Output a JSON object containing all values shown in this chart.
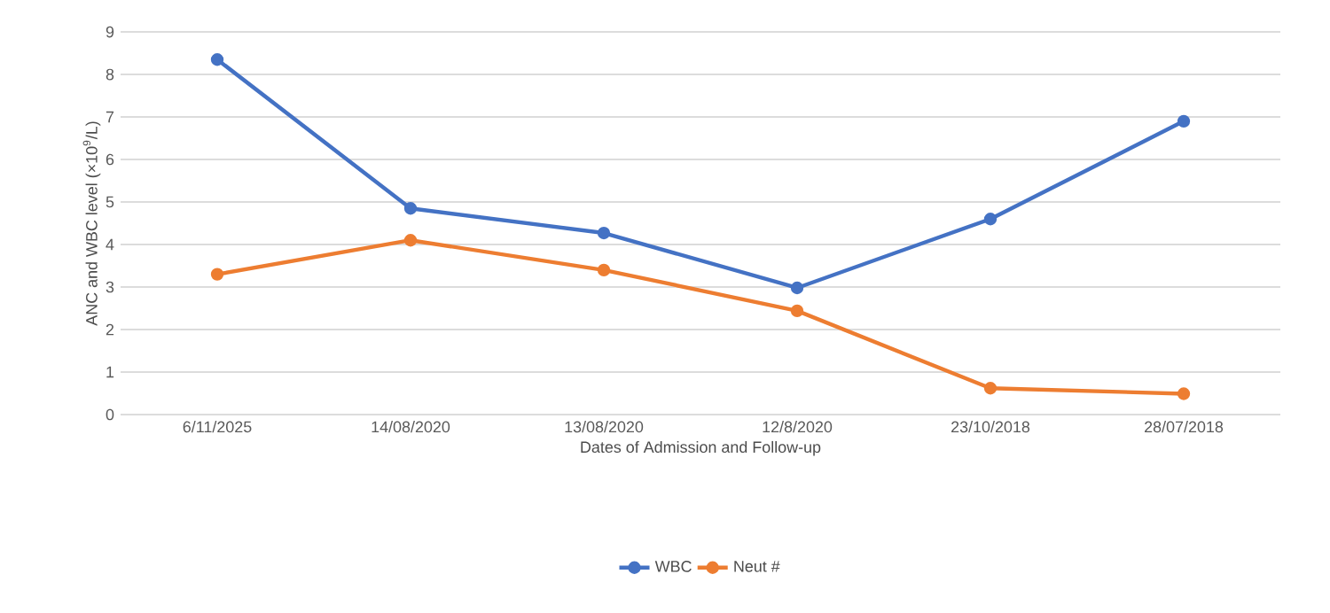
{
  "chart_data": {
    "type": "line",
    "xlabel": "Dates of Admission and Follow-up",
    "ylabel": "ANC and WBC level (×10$^{9}$/L)",
    "categories": [
      "6/11/2025",
      "14/08/2020",
      "13/08/2020",
      "12/8/2020",
      "23/10/2018",
      "28/07/2018"
    ],
    "series": [
      {
        "name": "WBC",
        "color": "#4472c4",
        "values": [
          8.35,
          4.85,
          4.27,
          2.98,
          4.6,
          6.9
        ]
      },
      {
        "name": "Neut #",
        "color": "#ed7d31",
        "values": [
          3.3,
          4.1,
          3.4,
          2.44,
          0.62,
          0.49
        ]
      }
    ],
    "ylim": [
      0,
      9
    ],
    "yticks": [
      0,
      1,
      2,
      3,
      4,
      5,
      6,
      7,
      8,
      9
    ],
    "grid": "y",
    "legend": "bottom",
    "marker": "circle",
    "line_style": "solid"
  }
}
